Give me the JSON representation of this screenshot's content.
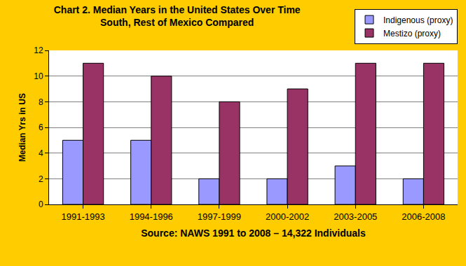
{
  "chart_data": {
    "type": "bar",
    "title": "Chart 2. Median Years in the United States Over Time",
    "subtitle": "South, Rest of Mexico Compared",
    "x_label": "Source: NAWS 1991 to 2008 – 14,322 Individuals",
    "y_label": "Median Yrs in US",
    "categories": [
      "1991-1993",
      "1994-1996",
      "1997-1999",
      "2000-2002",
      "2003-2005",
      "2006-2008"
    ],
    "series": [
      {
        "name": "Indigenous (proxy)",
        "color": "#9999FF",
        "values": [
          5,
          5,
          2,
          2,
          3,
          2
        ]
      },
      {
        "name": "Mestizo (proxy)",
        "color": "#993366",
        "values": [
          11,
          10,
          8,
          9,
          11,
          11
        ]
      }
    ],
    "ylim": [
      0,
      12
    ],
    "yticks": [
      0,
      2,
      4,
      6,
      8,
      10,
      12
    ],
    "grid": true,
    "legend": "upper right"
  }
}
